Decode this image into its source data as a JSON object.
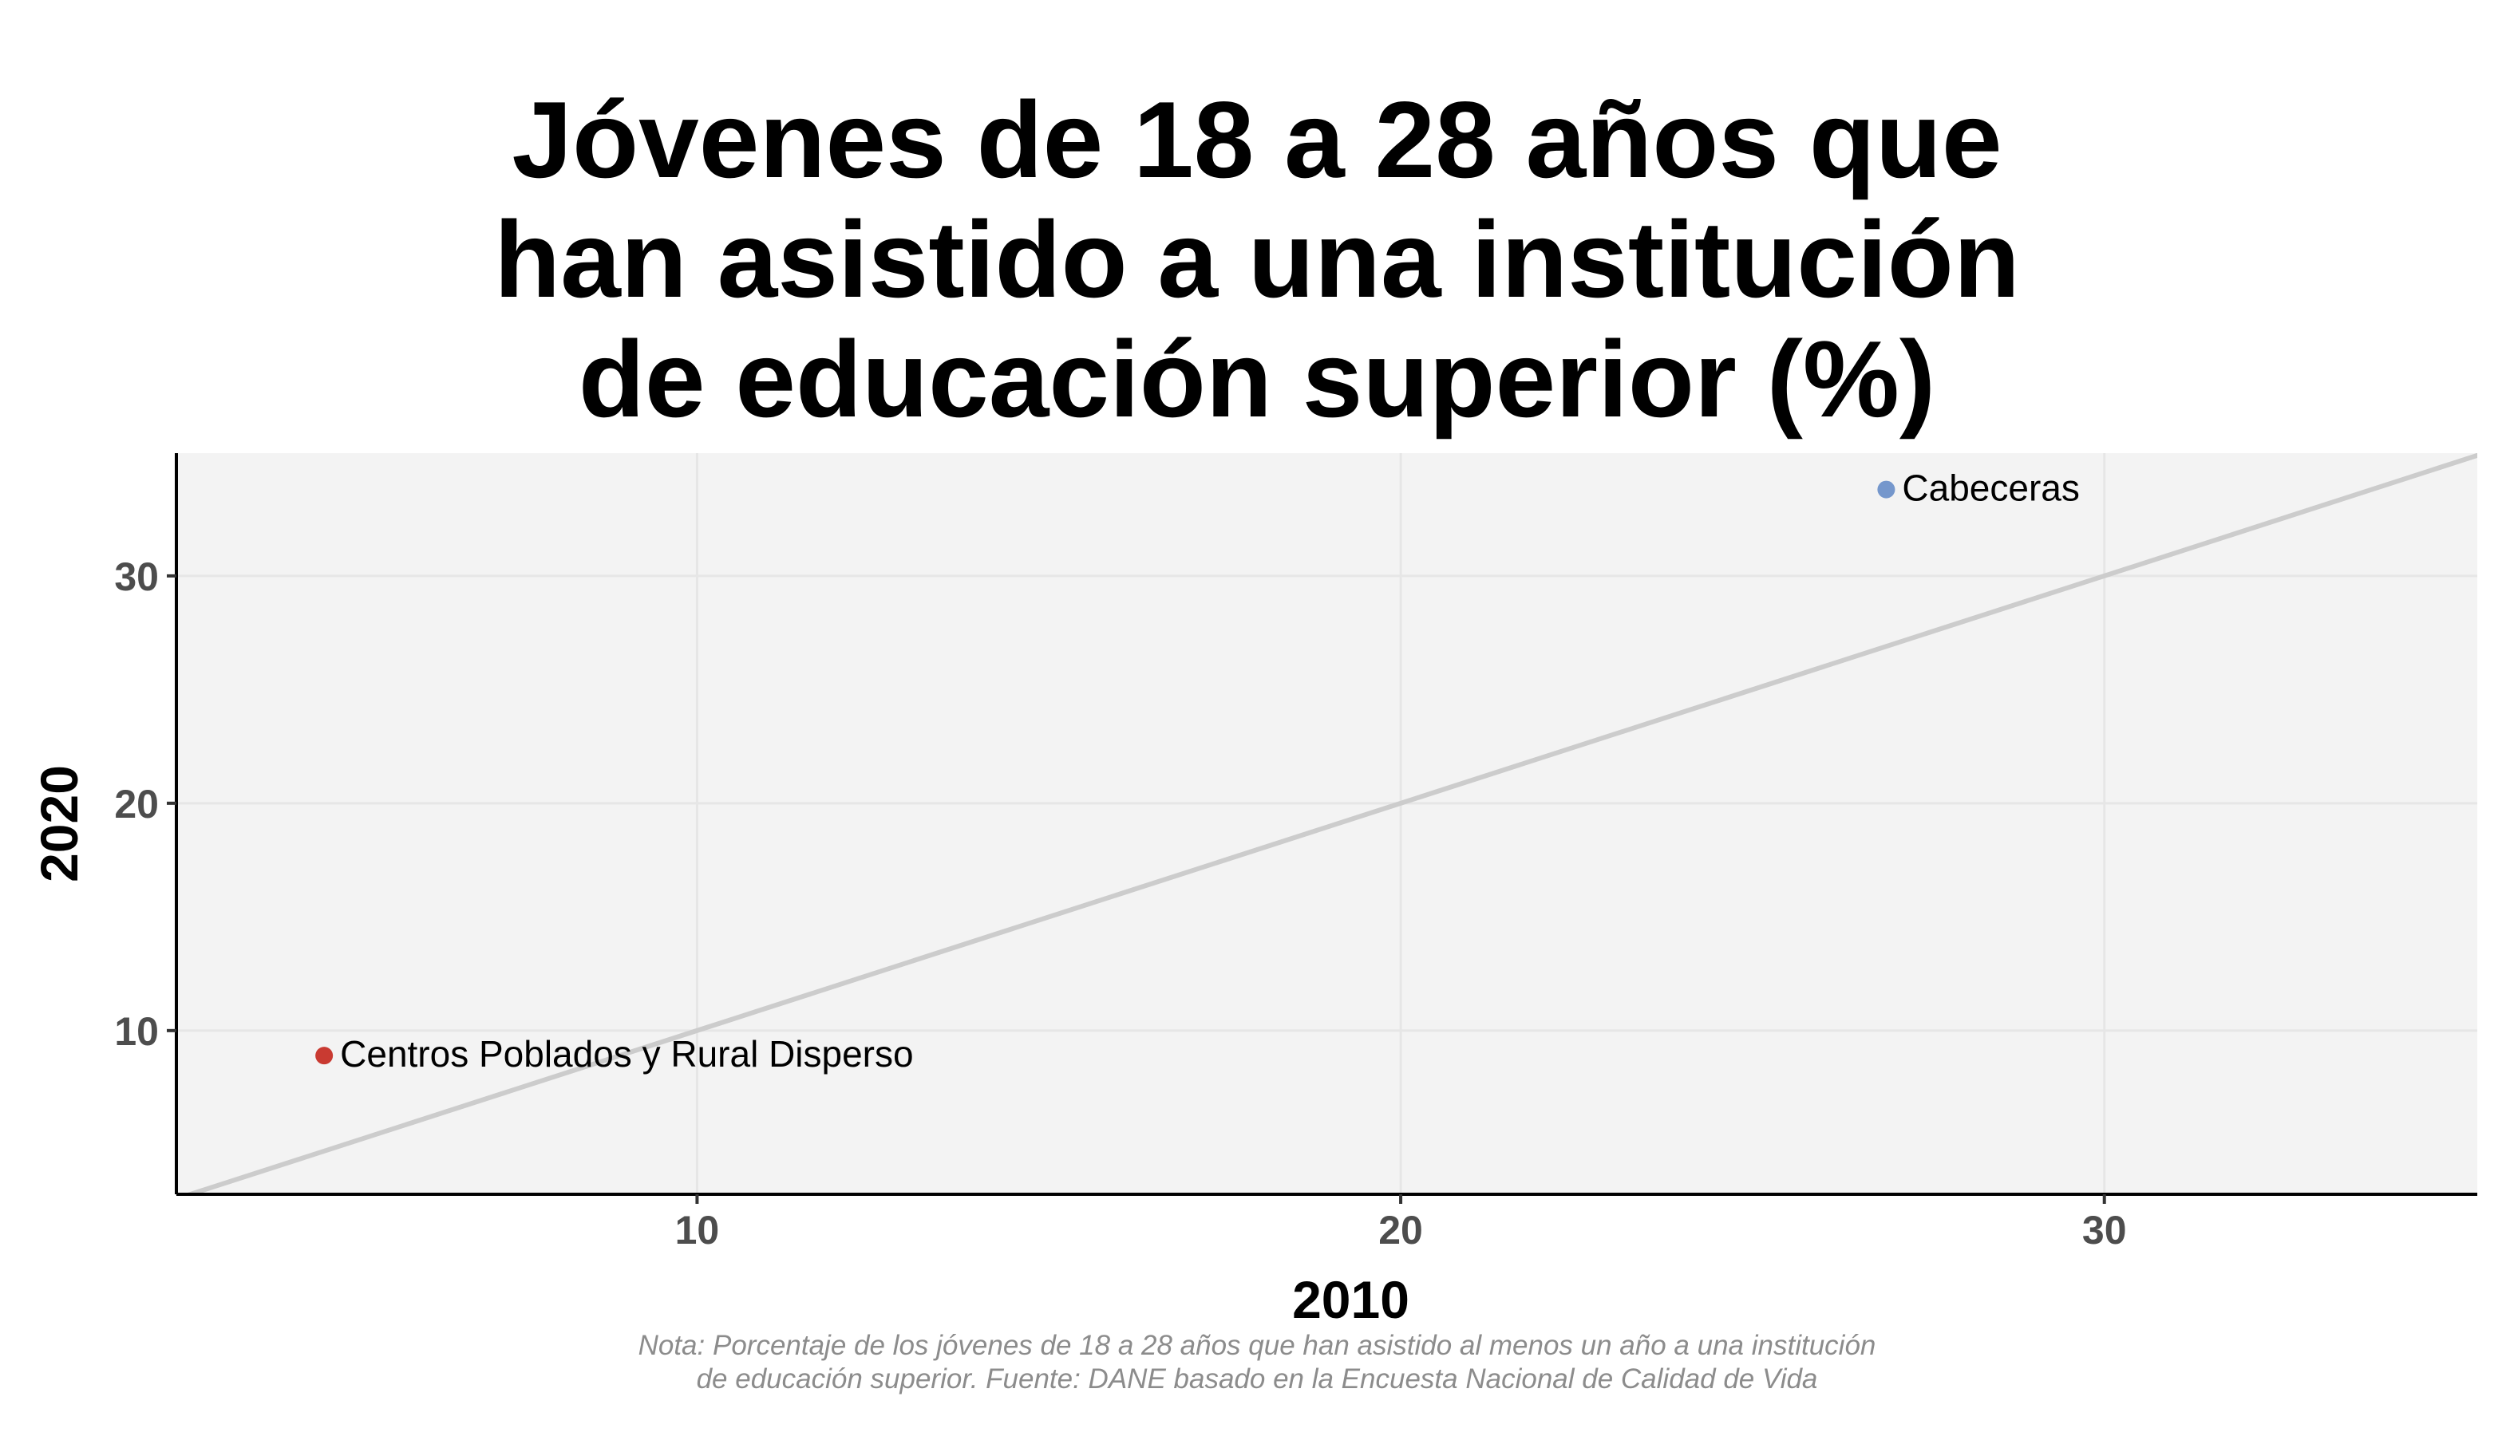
{
  "title_lines": [
    "Jóvenes de 18 a 28 años que",
    "han asistido a una institución",
    "de educación superior (%)"
  ],
  "note_lines": [
    "Nota: Porcentaje de los jóvenes de 18 a 28 años que han asistido al menos un año a una institución",
    "de educación superior. Fuente: DANE basado en la Encuesta Nacional de Calidad de Vida"
  ],
  "colors": {
    "panel_background": "#f3f3f3",
    "gridline": "#e6e6e6",
    "reference_line": "#cccccc",
    "axis_line": "#000000"
  },
  "chart_data": {
    "type": "scatter",
    "title": "Jóvenes de 18 a 28 años que han asistido a una institución de educación superior (%)",
    "xlabel": "2010",
    "ylabel": "2020",
    "xlim": [
      2.6,
      35.3
    ],
    "ylim": [
      2.8,
      35.4
    ],
    "xticks": [
      10,
      20,
      30
    ],
    "yticks": [
      10,
      20,
      30
    ],
    "grid": true,
    "reference_line": "y = x",
    "points": [
      {
        "label": "Cabeceras",
        "x": 26.9,
        "y": 33.8,
        "color": "#7597cc"
      },
      {
        "label": "Centros Poblados y Rural Disperso",
        "x": 4.7,
        "y": 8.9,
        "color": "#c93a31"
      }
    ]
  }
}
